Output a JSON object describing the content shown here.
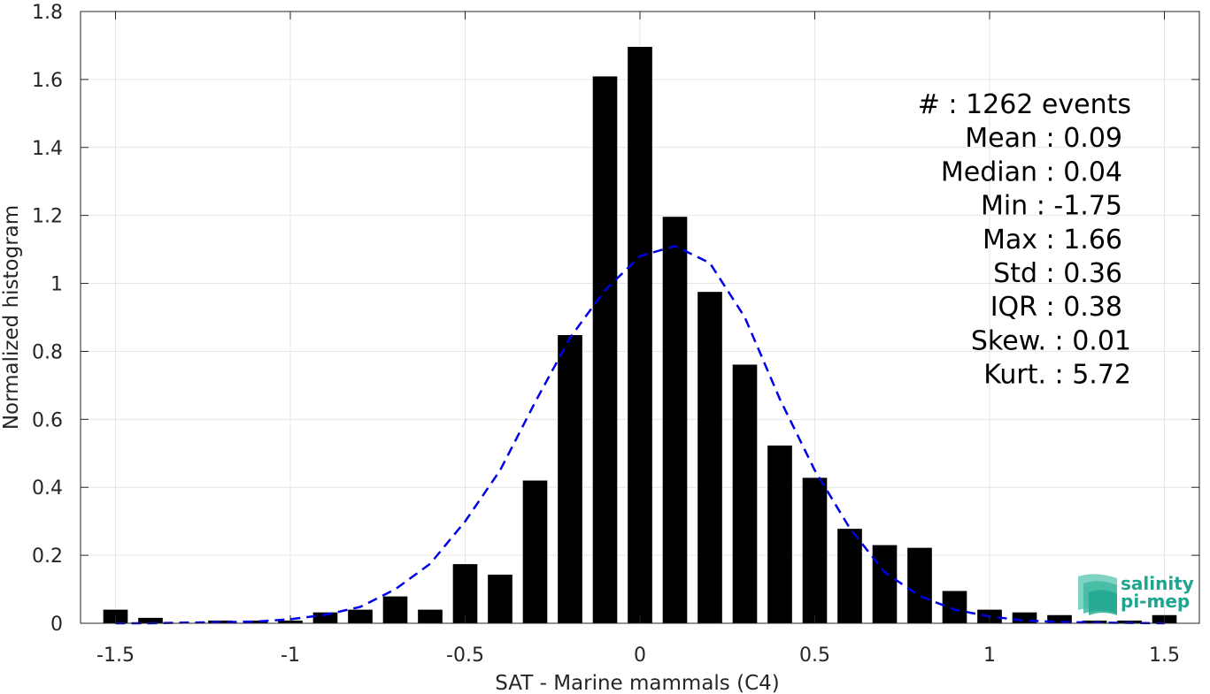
{
  "chart_data": {
    "type": "bar",
    "xlabel": "SAT - Marine mammals (C4)",
    "ylabel": "Normalized histogram",
    "xlim": [
      -1.6,
      1.6
    ],
    "ylim": [
      0,
      1.8
    ],
    "xticks": [
      -1.5,
      -1,
      -0.5,
      0,
      0.5,
      1,
      1.5
    ],
    "xtick_labels": [
      "-1.5",
      "-1",
      "-0.5",
      "0",
      "0.5",
      "1",
      "1.5"
    ],
    "yticks": [
      0,
      0.2,
      0.4,
      0.6,
      0.8,
      1,
      1.2,
      1.4,
      1.6,
      1.8
    ],
    "ytick_labels": [
      "0",
      "0.2",
      "0.4",
      "0.6",
      "0.8",
      "1",
      "1.2",
      "1.4",
      "1.6",
      "1.8"
    ],
    "grid": true,
    "bar_color": "#000000",
    "bins": {
      "x": [
        -1.5,
        -1.4,
        -1.3,
        -1.2,
        -1.1,
        -1.0,
        -0.9,
        -0.8,
        -0.7,
        -0.6,
        -0.5,
        -0.4,
        -0.3,
        -0.2,
        -0.1,
        0.0,
        0.1,
        0.2,
        0.3,
        0.4,
        0.5,
        0.6,
        0.7,
        0.8,
        0.9,
        1.0,
        1.1,
        1.2,
        1.3,
        1.4,
        1.5
      ],
      "values": [
        0.04,
        0.016,
        0.0,
        0.008,
        0.008,
        0.008,
        0.032,
        0.04,
        0.079,
        0.04,
        0.174,
        0.143,
        0.42,
        0.848,
        1.609,
        1.696,
        1.196,
        0.975,
        0.761,
        0.523,
        0.428,
        0.278,
        0.23,
        0.222,
        0.095,
        0.04,
        0.032,
        0.024,
        0.008,
        0.008,
        0.024
      ]
    },
    "fit_curve": {
      "style": "dashed",
      "color": "#0000e6",
      "x": [
        -1.5,
        -1.4,
        -1.3,
        -1.2,
        -1.1,
        -1.0,
        -0.9,
        -0.8,
        -0.7,
        -0.6,
        -0.5,
        -0.4,
        -0.3,
        -0.2,
        -0.1,
        0.0,
        0.1,
        0.2,
        0.3,
        0.4,
        0.5,
        0.6,
        0.7,
        0.8,
        0.9,
        1.0,
        1.1,
        1.2,
        1.3,
        1.4,
        1.5
      ],
      "y": [
        0.0,
        0.0,
        0.002,
        0.003,
        0.005,
        0.012,
        0.025,
        0.048,
        0.1,
        0.175,
        0.3,
        0.45,
        0.65,
        0.84,
        0.98,
        1.08,
        1.11,
        1.06,
        0.9,
        0.66,
        0.45,
        0.28,
        0.15,
        0.08,
        0.04,
        0.02,
        0.008,
        0.004,
        0.002,
        0.001,
        0.0
      ]
    }
  },
  "stats": [
    {
      "key": "events",
      "text": "#  : 1262 events"
    },
    {
      "key": "mean",
      "text": "Mean : 0.09"
    },
    {
      "key": "median",
      "text": "Median : 0.04"
    },
    {
      "key": "min",
      "text": "Min : -1.75"
    },
    {
      "key": "max",
      "text": "Max : 1.66"
    },
    {
      "key": "std",
      "text": "Std : 0.36"
    },
    {
      "key": "iqr",
      "text": "IQR : 0.38"
    },
    {
      "key": "skew",
      "text": "Skew. : 0.01"
    },
    {
      "key": "kurt",
      "text": "Kurt. : 5.72"
    }
  ],
  "logo": {
    "line1": "salinity",
    "line2": "pi-mep",
    "color": "#1fa58f"
  }
}
